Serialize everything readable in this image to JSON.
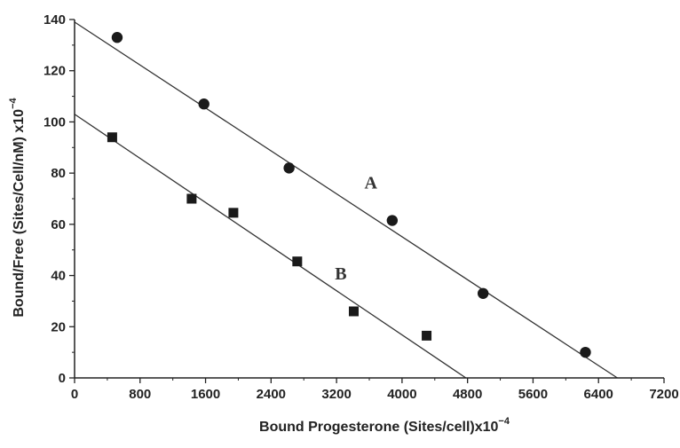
{
  "chart_data": {
    "type": "scatter",
    "title": "",
    "xlabel": "Bound Progesterone (Sites/cell)x10",
    "xlabel_exponent": "−4",
    "ylabel": "Bound/Free (Sites/Cell/nM) x10",
    "ylabel_exponent": "−4",
    "xlim": [
      0,
      7200
    ],
    "ylim": [
      0,
      140
    ],
    "x_ticks": [
      "0",
      "800",
      "1600",
      "2400",
      "3200",
      "4000",
      "4800",
      "5600",
      "6400",
      "7200"
    ],
    "y_ticks": [
      "0",
      "20",
      "40",
      "60",
      "80",
      "100",
      "120",
      "140"
    ],
    "grid": false,
    "legend": "none",
    "series": [
      {
        "name": "A",
        "marker": "circle",
        "color": "#1a1a1a",
        "points": [
          {
            "x": 520,
            "y": 133
          },
          {
            "x": 1580,
            "y": 107
          },
          {
            "x": 2620,
            "y": 82
          },
          {
            "x": 3880,
            "y": 61.5
          },
          {
            "x": 4990,
            "y": 33
          },
          {
            "x": 6240,
            "y": 10
          }
        ],
        "fit_line": {
          "x": [
            0,
            6630
          ],
          "y": [
            139,
            0
          ]
        },
        "label_at": {
          "x": 3540,
          "y": 74
        }
      },
      {
        "name": "B",
        "marker": "square",
        "color": "#1a1a1a",
        "points": [
          {
            "x": 460,
            "y": 94
          },
          {
            "x": 1430,
            "y": 70
          },
          {
            "x": 1940,
            "y": 64.5
          },
          {
            "x": 2720,
            "y": 45.5
          },
          {
            "x": 3410,
            "y": 26
          },
          {
            "x": 4300,
            "y": 16.5
          }
        ],
        "fit_line": {
          "x": [
            0,
            4780
          ],
          "y": [
            103,
            0
          ]
        },
        "label_at": {
          "x": 3180,
          "y": 38.5
        }
      }
    ]
  },
  "colors": {
    "axis": "#222222",
    "line": "#333333",
    "marker": "#1a1a1a"
  }
}
